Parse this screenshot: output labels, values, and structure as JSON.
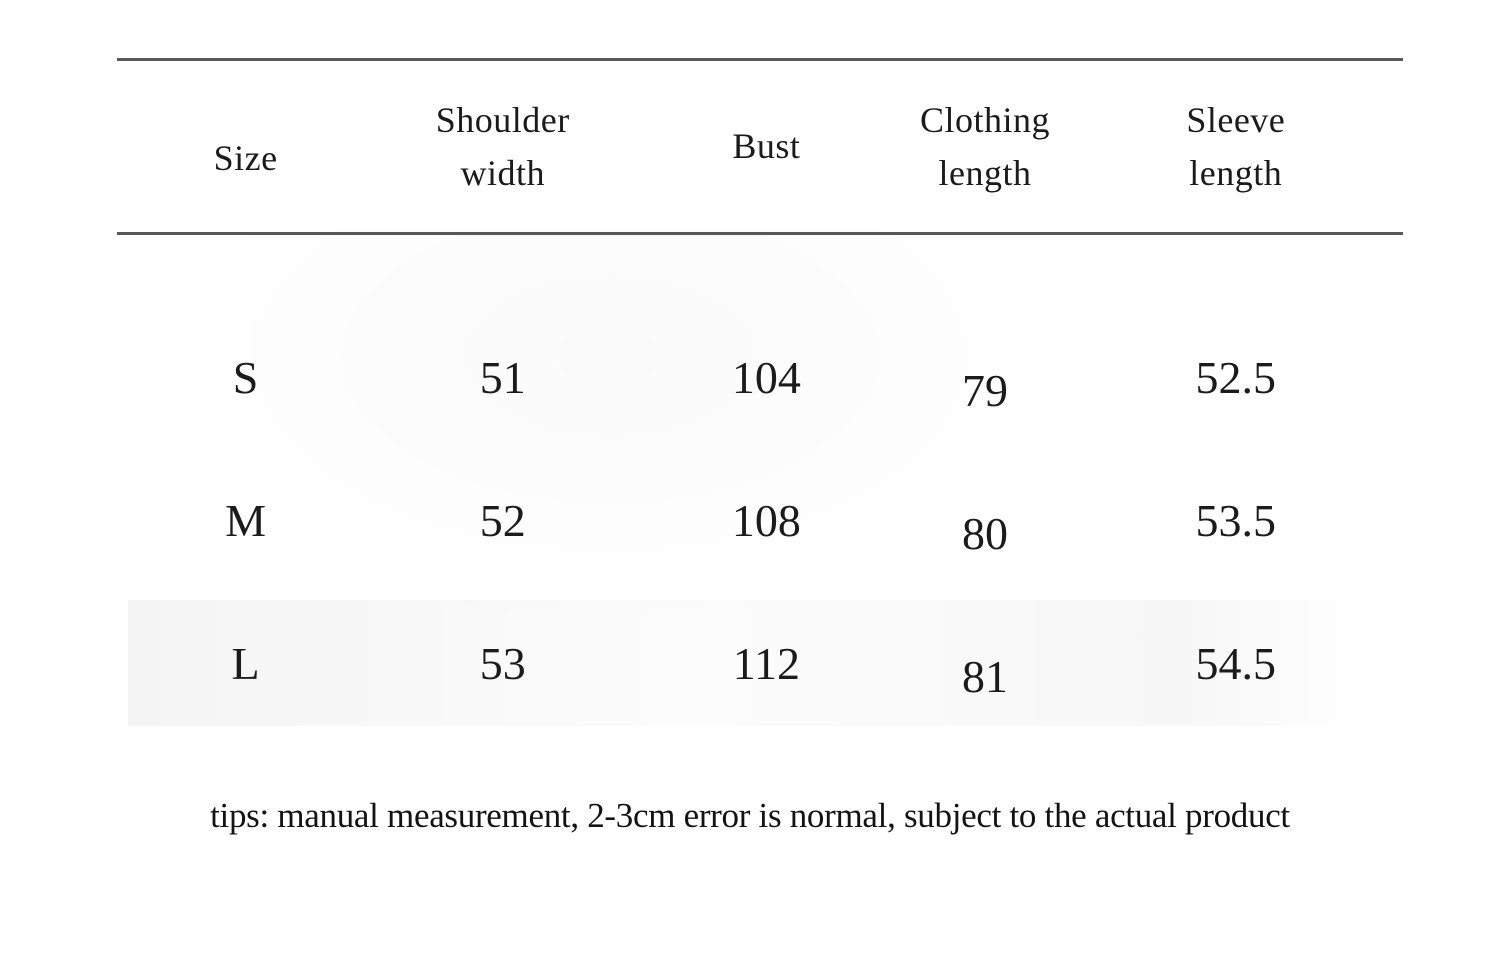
{
  "size_chart": {
    "columns": [
      {
        "id": "size",
        "label": "Size"
      },
      {
        "id": "shoulder_width",
        "label": "Shoulder\nwidth"
      },
      {
        "id": "bust",
        "label": "Bust"
      },
      {
        "id": "clothing_length",
        "label": "Clothing\nlength"
      },
      {
        "id": "sleeve_length",
        "label": "Sleeve\nlength"
      }
    ],
    "rows": [
      {
        "size": "S",
        "shoulder_width": "51",
        "bust": "104",
        "clothing_length": "79",
        "sleeve_length": "52.5"
      },
      {
        "size": "M",
        "shoulder_width": "52",
        "bust": "108",
        "clothing_length": "80",
        "sleeve_length": "53.5"
      },
      {
        "size": "L",
        "shoulder_width": "53",
        "bust": "112",
        "clothing_length": "81",
        "sleeve_length": "54.5"
      }
    ]
  },
  "tips": {
    "text": "tips: manual measurement, 2-3cm error is normal, subject to the actual product"
  },
  "colors": {
    "rule_line": "#58585a",
    "text": "#1b1b1b",
    "background": "#ffffff"
  },
  "chart_data": {
    "type": "table",
    "title": "",
    "columns": [
      "Size",
      "Shoulder width",
      "Bust",
      "Clothing length",
      "Sleeve length"
    ],
    "rows": [
      [
        "S",
        51,
        104,
        79,
        52.5
      ],
      [
        "M",
        52,
        108,
        80,
        53.5
      ],
      [
        "L",
        53,
        112,
        81,
        54.5
      ]
    ],
    "note": "tips: manual measurement, 2-3cm error is normal, subject to the actual product",
    "units": "cm"
  }
}
